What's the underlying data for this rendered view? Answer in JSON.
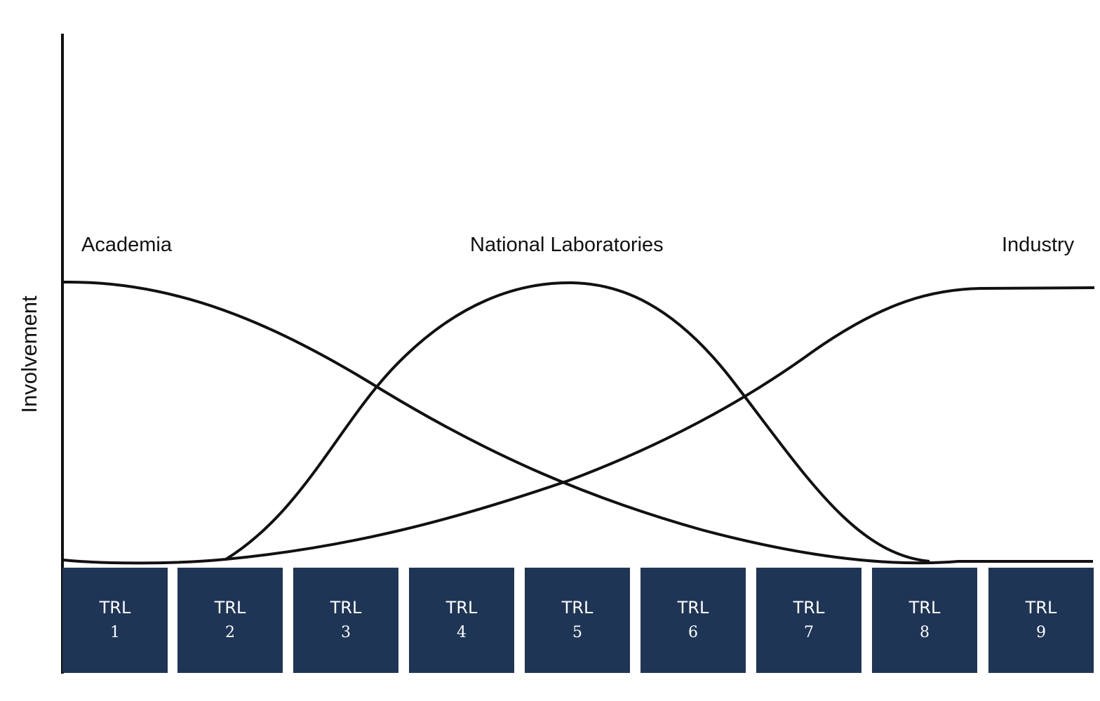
{
  "diagram": {
    "y_axis_label": "Involvement",
    "series_labels": {
      "academia": "Academia",
      "national_labs": "National Laboratories",
      "industry": "Industry"
    },
    "trl_boxes": [
      {
        "label": "TRL",
        "number": "1"
      },
      {
        "label": "TRL",
        "number": "2"
      },
      {
        "label": "TRL",
        "number": "3"
      },
      {
        "label": "TRL",
        "number": "4"
      },
      {
        "label": "TRL",
        "number": "5"
      },
      {
        "label": "TRL",
        "number": "6"
      },
      {
        "label": "TRL",
        "number": "7"
      },
      {
        "label": "TRL",
        "number": "8"
      },
      {
        "label": "TRL",
        "number": "9"
      }
    ],
    "colors": {
      "box_fill": "#1f3556",
      "box_text": "#ffffff",
      "line": "#111111"
    }
  }
}
